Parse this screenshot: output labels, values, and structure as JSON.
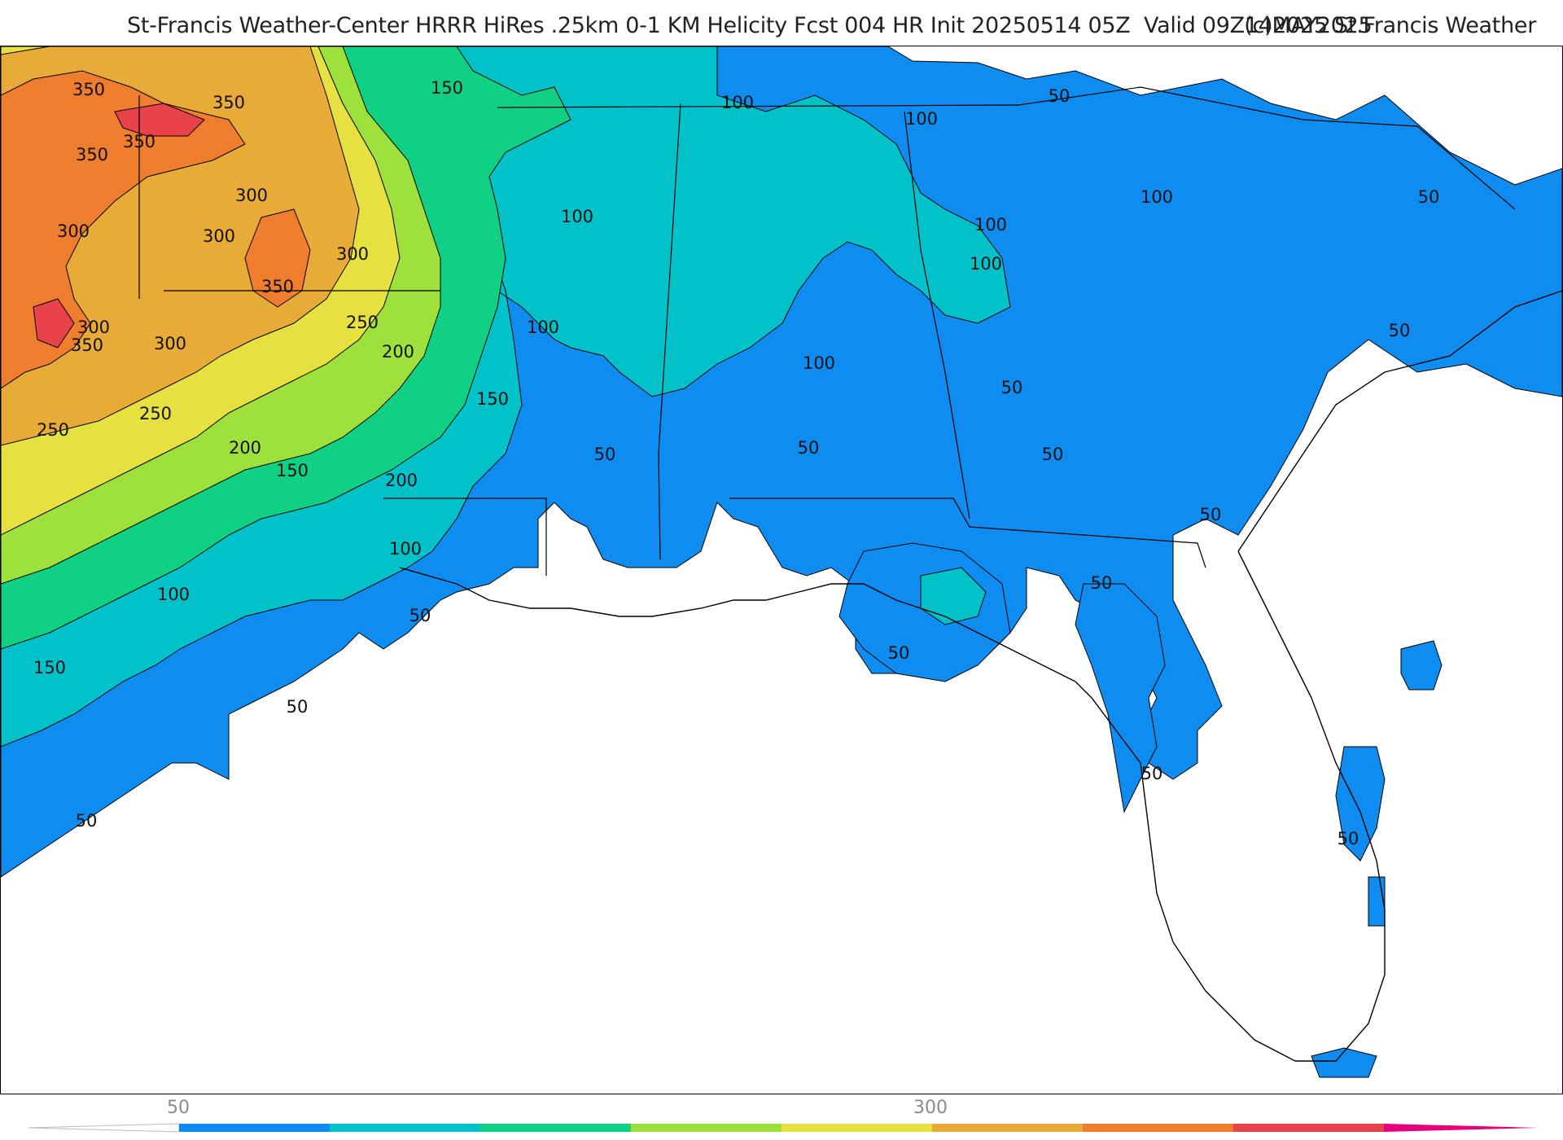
{
  "header": {
    "title": "St-Francis Weather-Center HRRR HiRes .25km 0-1 KM Helicity Fcst 004 HR Init 20250514 05Z  Valid 09Z14MAY2025",
    "copyright": "(c)2025 St.Francis Weather"
  },
  "colors": {
    "land_background": "#ffffff",
    "level_50": "#0f8cf0",
    "level_100": "#00c2c8",
    "level_150": "#10d084",
    "level_200": "#9fe13c",
    "level_250": "#e6e141",
    "level_300": "#e8ab37",
    "level_350": "#ee7d2d",
    "level_400": "#e8424a",
    "level_450": "#e6007e"
  },
  "map": {
    "variable": "0-1 KM Helicity",
    "model": "HRRR",
    "contour_labels": [
      {
        "text": "350"
      },
      {
        "text": "350"
      },
      {
        "text": "350"
      },
      {
        "text": "350"
      },
      {
        "text": "300"
      },
      {
        "text": "300"
      },
      {
        "text": "300"
      },
      {
        "text": "300"
      },
      {
        "text": "350"
      },
      {
        "text": "300"
      },
      {
        "text": "350"
      },
      {
        "text": "300"
      },
      {
        "text": "250"
      },
      {
        "text": "250"
      },
      {
        "text": "250"
      },
      {
        "text": "200"
      },
      {
        "text": "200"
      },
      {
        "text": "200"
      },
      {
        "text": "150"
      },
      {
        "text": "150"
      },
      {
        "text": "150"
      },
      {
        "text": "150"
      },
      {
        "text": "100"
      },
      {
        "text": "100"
      },
      {
        "text": "100"
      },
      {
        "text": "100"
      },
      {
        "text": "100"
      },
      {
        "text": "100"
      },
      {
        "text": "100"
      },
      {
        "text": "100"
      },
      {
        "text": "100"
      },
      {
        "text": "100"
      },
      {
        "text": "50"
      },
      {
        "text": "50"
      },
      {
        "text": "50"
      },
      {
        "text": "50"
      },
      {
        "text": "50"
      },
      {
        "text": "50"
      },
      {
        "text": "50"
      },
      {
        "text": "50"
      },
      {
        "text": "50"
      },
      {
        "text": "50"
      },
      {
        "text": "50"
      },
      {
        "text": "50"
      },
      {
        "text": "50"
      },
      {
        "text": "50"
      },
      {
        "text": "50"
      }
    ]
  },
  "colorbar": {
    "ticks": [
      {
        "label": "50"
      },
      {
        "label": "300"
      }
    ],
    "levels": [
      50,
      100,
      150,
      200,
      250,
      300,
      350,
      400,
      450
    ]
  }
}
